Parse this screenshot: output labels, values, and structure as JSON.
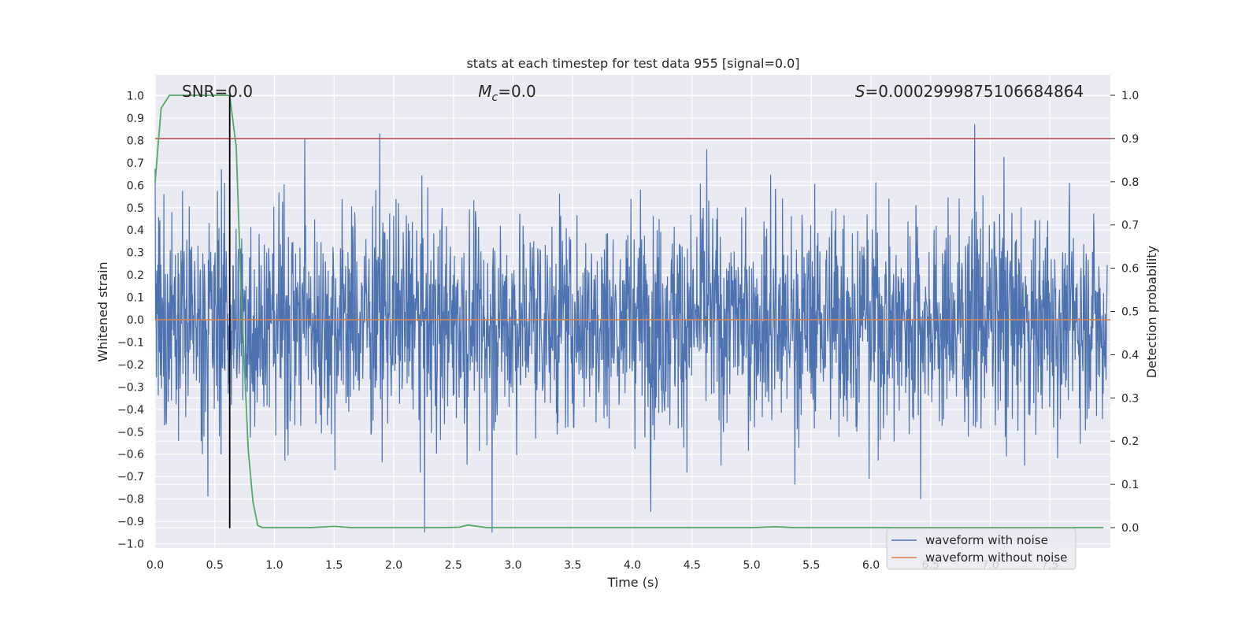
{
  "chart_data": {
    "type": "line",
    "title": "stats at each timestep for test data 955 [signal=0.0]",
    "xlabel": "Time (s)",
    "ylabel_left": "Whitened strain",
    "ylabel_right": "Detection probability",
    "xlim": [
      0.0,
      8.0
    ],
    "ylim_left": [
      -1.05,
      1.09
    ],
    "ylim_right": [
      -0.05,
      1.04
    ],
    "x_ticks": [
      "0.0",
      "0.5",
      "1.0",
      "1.5",
      "2.0",
      "2.5",
      "3.0",
      "3.5",
      "4.0",
      "4.5",
      "5.0",
      "5.5",
      "6.0",
      "6.5",
      "7.0",
      "7.5"
    ],
    "y_left_ticks": [
      "1.0",
      "0.9",
      "0.8",
      "0.7",
      "0.6",
      "0.5",
      "0.4",
      "0.3",
      "0.2",
      "0.1",
      "0.0",
      "−0.1",
      "−0.2",
      "−0.3",
      "−0.4",
      "−0.5",
      "−0.6",
      "−0.7",
      "−0.8",
      "−0.9",
      "−1.0"
    ],
    "y_right_ticks": [
      "1.0",
      "0.9",
      "0.8",
      "0.7",
      "0.6",
      "0.5",
      "0.4",
      "0.3",
      "0.2",
      "0.1",
      "0.0"
    ],
    "grid": true,
    "annotations": {
      "snr": "SNR=0.0",
      "mc_prefix": "M",
      "mc_sub": "c",
      "mc_suffix": "=0.0",
      "s_prefix": "S",
      "s_suffix": "=0.0002999875106684864"
    },
    "threshold_right": 0.9,
    "detection_marker_x": 0.625,
    "series": [
      {
        "name": "waveform with noise",
        "color": "#4c72b0",
        "axis": "left",
        "description": "dense whitened-strain noise, amplitude mostly within ±0.4, peaks up to about ±1.0",
        "sample_rate": 2048,
        "envelope_typical": 0.4,
        "peak_max": 1.0
      },
      {
        "name": "waveform without noise",
        "color": "#dd8452",
        "axis": "left",
        "values_constant": 0.0
      },
      {
        "name": "detection probability",
        "color": "#55a868",
        "axis": "right",
        "x": [
          0.0,
          0.05,
          0.12,
          0.2,
          0.3,
          0.4,
          0.5,
          0.6,
          0.625,
          0.68,
          0.72,
          0.78,
          0.82,
          0.86,
          0.9,
          1.0,
          1.3,
          1.5,
          1.65,
          2.0,
          2.4,
          2.55,
          2.62,
          2.78,
          3.0,
          4.0,
          5.0,
          5.2,
          5.35,
          6.0,
          7.0,
          7.5,
          7.95
        ],
        "values": [
          0.8,
          0.97,
          1.0,
          1.0,
          1.0,
          1.0,
          1.0,
          1.0,
          1.0,
          0.88,
          0.55,
          0.18,
          0.06,
          0.005,
          0.0,
          0.0,
          0.0,
          0.003,
          0.0,
          0.0,
          0.0,
          0.001,
          0.006,
          0.0,
          0.0,
          0.0,
          0.0,
          0.002,
          0.0,
          0.0,
          0.0,
          0.0,
          0.0
        ]
      }
    ],
    "legend": {
      "placement": "bottom-right",
      "entries": [
        {
          "label": "waveform with noise",
          "color": "#4c72b0"
        },
        {
          "label": "waveform without noise",
          "color": "#dd8452"
        }
      ]
    },
    "colors": {
      "plot_bg": "#eaeaf2",
      "grid": "#ffffff",
      "threshold": "#c44e52",
      "marker": "#000000"
    }
  }
}
